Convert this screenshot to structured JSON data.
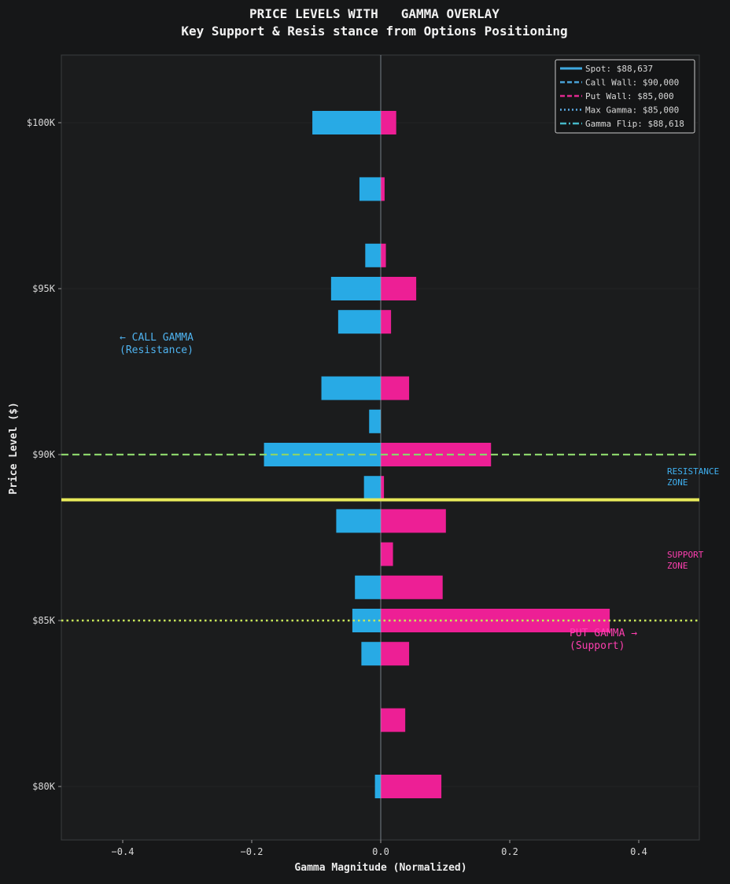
{
  "chart_data": {
    "type": "bar",
    "orientation": "horizontal",
    "title": "PRICE LEVELS WITH   GAMMA OVERLAY",
    "subtitle": "Key Support & Resis stance from Options Positioning",
    "xlabel": "Gamma Magnitude (Normalized)",
    "ylabel": "Price Level ($)",
    "xlim": [
      -0.5,
      0.5
    ],
    "ylim": [
      78500,
      102000
    ],
    "xticks": [
      -0.4,
      -0.2,
      0.0,
      0.2,
      0.4
    ],
    "xtick_labels": [
      "−0.4",
      "−0.2",
      "0.0",
      "0.2",
      "0.4"
    ],
    "yticks": [
      80000,
      85000,
      90000,
      95000,
      100000
    ],
    "ytick_labels": [
      "$80K",
      "$85K",
      "$90K",
      "$95K",
      "$100K"
    ],
    "series": [
      {
        "name": "Call Gamma",
        "color": "#29b6f6",
        "points": [
          {
            "y": 100000,
            "x": -0.106
          },
          {
            "y": 98000,
            "x": -0.033
          },
          {
            "y": 96000,
            "x": -0.024
          },
          {
            "y": 95000,
            "x": -0.077
          },
          {
            "y": 94000,
            "x": -0.066
          },
          {
            "y": 92000,
            "x": -0.092
          },
          {
            "y": 91000,
            "x": -0.018
          },
          {
            "y": 90000,
            "x": -0.181
          },
          {
            "y": 89000,
            "x": -0.026
          },
          {
            "y": 88000,
            "x": -0.069
          },
          {
            "y": 86000,
            "x": -0.04
          },
          {
            "y": 85000,
            "x": -0.044
          },
          {
            "y": 84000,
            "x": -0.03
          },
          {
            "y": 80000,
            "x": -0.009
          }
        ]
      },
      {
        "name": "Put Gamma",
        "color": "#ff1fa0",
        "points": [
          {
            "y": 100000,
            "x": 0.024
          },
          {
            "y": 98000,
            "x": 0.006
          },
          {
            "y": 96000,
            "x": 0.008
          },
          {
            "y": 95000,
            "x": 0.055
          },
          {
            "y": 94000,
            "x": 0.016
          },
          {
            "y": 92000,
            "x": 0.044
          },
          {
            "y": 90000,
            "x": 0.171
          },
          {
            "y": 89000,
            "x": 0.005
          },
          {
            "y": 88000,
            "x": 0.101
          },
          {
            "y": 87000,
            "x": 0.019
          },
          {
            "y": 86000,
            "x": 0.096
          },
          {
            "y": 85000,
            "x": 0.355
          },
          {
            "y": 84000,
            "x": 0.044
          },
          {
            "y": 82000,
            "x": 0.038
          },
          {
            "y": 80000,
            "x": 0.094
          }
        ]
      }
    ],
    "reference_lines": [
      {
        "name": "Spot",
        "value": 88637,
        "color": "#e8ea5a",
        "style": "solid"
      },
      {
        "name": "Call Wall",
        "value": 90000,
        "color": "#8bd36b",
        "style": "dashed"
      },
      {
        "name": "Max Gamma",
        "value": 85000,
        "color": "#c8e85a",
        "style": "dotted"
      }
    ],
    "legend": {
      "position": "top-right",
      "entries": [
        {
          "label": "Spot: $88,637",
          "color": "#3fa9e0",
          "style": "solid"
        },
        {
          "label": "Call Wall: $90,000",
          "color": "#4aa3d8",
          "style": "dashed"
        },
        {
          "label": "Put Wall: $85,000",
          "color": "#e0288f",
          "style": "dashed"
        },
        {
          "label": "Max Gamma: $85,000",
          "color": "#5aa8e0",
          "style": "dotted"
        },
        {
          "label": "Gamma Flip: $88,618",
          "color": "#46b8c8",
          "style": "dashdot"
        }
      ]
    },
    "annotations": [
      {
        "lines": [
          "← CALL GAMMA",
          "  (Resistance)"
        ],
        "color": "#4fb3f0",
        "anchor": "call-left"
      },
      {
        "lines": [
          "RESISTANCE",
          "ZONE"
        ],
        "color": "#3fb0f0",
        "anchor": "resistance-right"
      },
      {
        "lines": [
          "SUPPORT",
          "ZONE"
        ],
        "color": "#ff3fb0",
        "anchor": "support-right"
      },
      {
        "lines": [
          "PUT GAMMA →",
          "  (Support)"
        ],
        "color": "#ff3fb0",
        "anchor": "put-right"
      }
    ]
  }
}
